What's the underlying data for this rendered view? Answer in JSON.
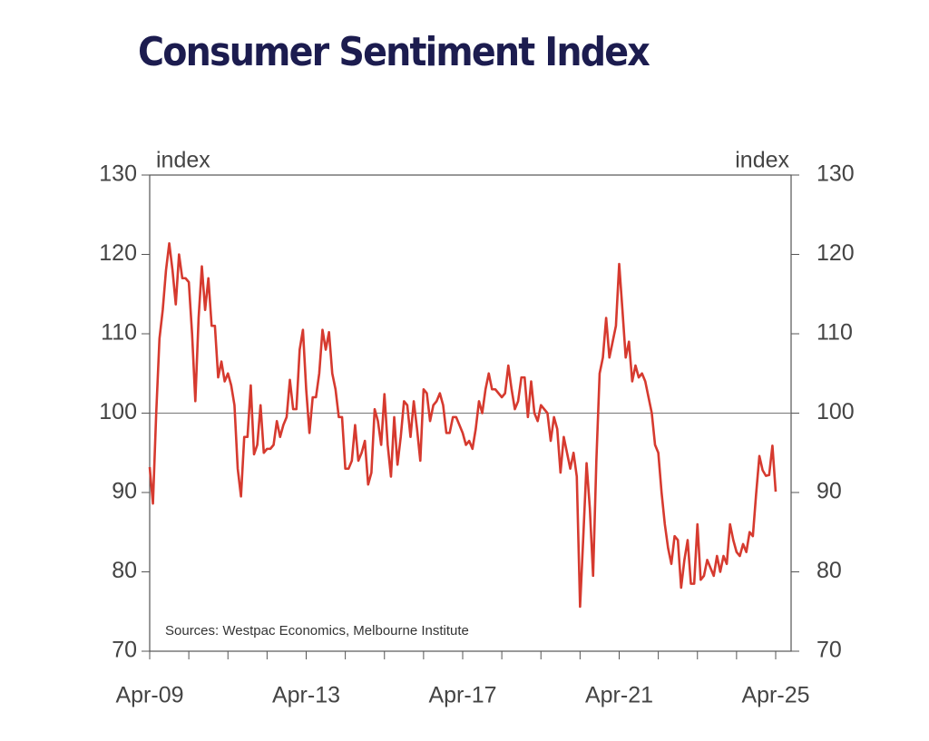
{
  "chart_data": {
    "type": "line",
    "title": "Consumer Sentiment Index",
    "ylabel": "index",
    "y2label": "index",
    "note": "Sources: Westpac Economics, Melbourne Institute",
    "categories": [
      "Apr-09",
      null,
      null,
      null,
      null,
      null,
      null,
      null,
      null,
      null,
      null,
      null,
      null,
      null,
      null,
      null,
      null,
      null,
      null,
      null,
      null,
      null,
      null,
      null,
      null,
      null,
      null,
      null,
      null,
      null,
      null,
      null,
      null,
      null,
      null,
      null,
      null,
      null,
      null,
      null,
      null,
      null,
      null,
      null,
      null,
      null,
      null,
      null,
      "Apr-13",
      null,
      null,
      null,
      null,
      null,
      null,
      null,
      null,
      null,
      null,
      null,
      null,
      null,
      null,
      null,
      null,
      null,
      null,
      null,
      null,
      null,
      null,
      null,
      null,
      null,
      null,
      null,
      null,
      null,
      null,
      null,
      null,
      null,
      null,
      null,
      null,
      null,
      null,
      null,
      null,
      null,
      null,
      null,
      null,
      null,
      null,
      null,
      "Apr-17",
      null,
      null,
      null,
      null,
      null,
      null,
      null,
      null,
      null,
      null,
      null,
      null,
      null,
      null,
      null,
      null,
      null,
      null,
      null,
      null,
      null,
      null,
      null,
      null,
      null,
      null,
      null,
      null,
      null,
      null,
      null,
      null,
      null,
      null,
      null,
      null,
      null,
      null,
      null,
      null,
      null,
      null,
      null,
      null,
      null,
      null,
      null,
      "Apr-21",
      null,
      null,
      null,
      null,
      null,
      null,
      null,
      null,
      null,
      null,
      null,
      null,
      null,
      null,
      null,
      null,
      null,
      null,
      null,
      null,
      null,
      null,
      null,
      null,
      null,
      null,
      null,
      null,
      null,
      null,
      null,
      null,
      null,
      null,
      null,
      null,
      null,
      null,
      null,
      null,
      null,
      null,
      null,
      null,
      null,
      null,
      null,
      "Apr-25"
    ],
    "series": [
      {
        "name": "Consumer Sentiment Index",
        "color": "#d63a2f",
        "values": [
          93.2,
          88.6,
          100,
          109.4,
          113,
          118,
          121.4,
          118,
          113.7,
          120,
          117,
          117,
          116.5,
          110,
          101.5,
          112,
          118.5,
          113,
          117,
          111,
          111,
          104.5,
          106.5,
          104,
          105,
          103.5,
          101,
          93,
          89.5,
          97,
          97,
          103.5,
          94.8,
          96,
          101,
          95,
          95.5,
          95.5,
          96,
          99,
          97,
          98.5,
          99.5,
          104.2,
          100.5,
          100.5,
          108,
          110.5,
          103,
          97.5,
          102,
          102,
          105,
          110.5,
          108,
          110.2,
          105,
          103,
          99.5,
          99.5,
          93,
          93,
          94,
          98.5,
          94,
          95,
          96.5,
          91,
          92.5,
          100.5,
          99,
          96,
          102.4,
          96,
          92,
          99.5,
          93.5,
          97,
          101.5,
          101,
          97,
          101.5,
          98,
          94,
          103,
          102.5,
          99,
          101,
          101.5,
          102.5,
          101,
          97.5,
          97.5,
          99.5,
          99.5,
          98.5,
          97.5,
          96,
          96.5,
          95.5,
          98,
          101.5,
          100,
          103,
          105,
          103,
          103,
          102.5,
          102,
          102.5,
          106,
          103,
          100.5,
          101.5,
          104.5,
          104.5,
          99.5,
          104,
          100,
          99,
          101,
          100.5,
          100,
          96.5,
          99.5,
          98,
          92.5,
          97,
          95,
          93,
          95,
          92,
          75.6,
          84.5,
          93.7,
          88,
          79.5,
          94,
          105,
          107,
          112,
          107,
          109,
          111,
          118.8,
          113,
          107,
          109,
          104,
          106,
          104.5,
          105,
          104,
          102,
          100,
          96,
          95,
          90,
          86,
          83,
          81,
          84.5,
          84,
          78,
          81.5,
          84,
          78.5,
          78.5,
          86,
          79,
          79.5,
          81.5,
          80.5,
          79.5,
          82,
          80,
          82,
          81,
          86,
          84,
          82.5,
          82,
          83.5,
          82.5,
          85,
          84.5,
          89.8,
          94.6,
          92.8,
          92.1,
          92.2,
          95.9,
          90.1
        ]
      }
    ],
    "ylim": [
      70,
      130
    ],
    "yticks": [
      70,
      80,
      90,
      100,
      110,
      120,
      130
    ],
    "y2lim": [
      70,
      130
    ],
    "y2ticks": [
      70,
      80,
      90,
      100,
      110,
      120,
      130
    ],
    "hline": 100
  }
}
